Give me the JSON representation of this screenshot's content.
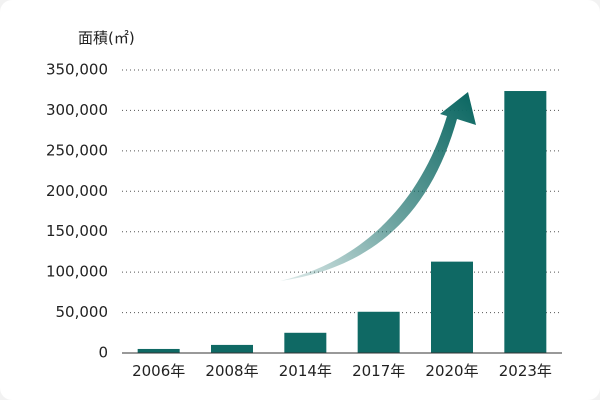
{
  "chart_data": {
    "type": "bar",
    "ylabel": "面積(㎡)",
    "categories": [
      "2006年",
      "2008年",
      "2014年",
      "2017年",
      "2020年",
      "2023年"
    ],
    "values": [
      5000,
      10000,
      25000,
      51000,
      113000,
      324000
    ],
    "ylim": [
      0,
      350000
    ],
    "yticks": [
      0,
      50000,
      100000,
      150000,
      200000,
      250000,
      300000,
      350000
    ],
    "ytick_labels": [
      "0",
      "50,000",
      "100,000",
      "150,000",
      "200,000",
      "250,000",
      "300,000",
      "350,000"
    ],
    "grid": true,
    "bar_color": "#0f6964",
    "trend_arrow": true
  }
}
